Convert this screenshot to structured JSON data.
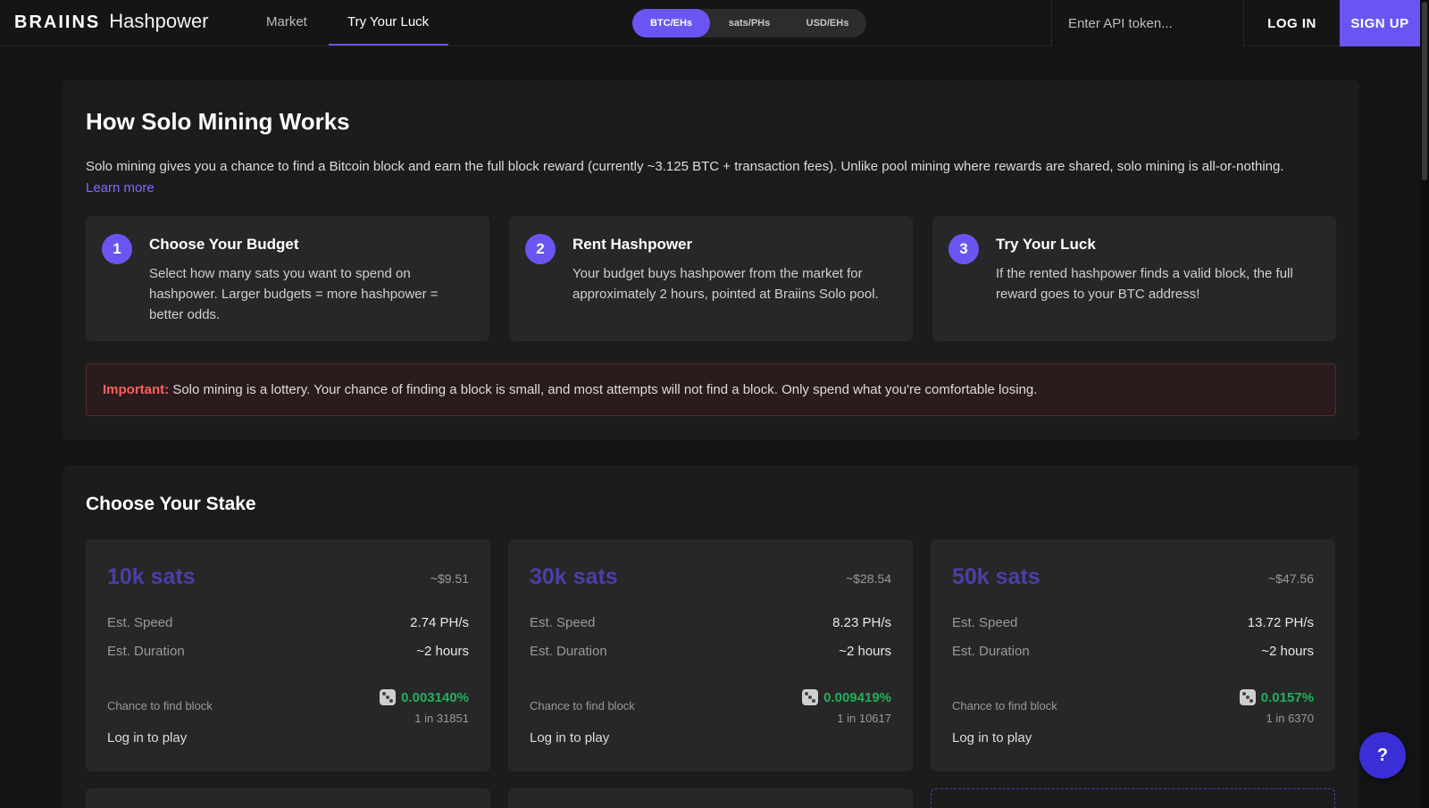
{
  "header": {
    "brand": "BRAIINS",
    "product": "Hashpower",
    "nav": [
      {
        "label": "Market",
        "active": false
      },
      {
        "label": "Try Your Luck",
        "active": true
      }
    ],
    "units": [
      {
        "label": "BTC/EHs",
        "active": true
      },
      {
        "label": "sats/PHs",
        "active": false
      },
      {
        "label": "USD/EHs",
        "active": false
      }
    ],
    "api_placeholder": "Enter API token...",
    "login_label": "LOG IN",
    "signup_label": "SIGN UP"
  },
  "how": {
    "title": "How Solo Mining Works",
    "intro": "Solo mining gives you a chance to find a Bitcoin block and earn the full block reward (currently ~3.125 BTC + transaction fees). Unlike pool mining where rewards are shared, solo mining is all-or-nothing.",
    "learn_more": "Learn more",
    "steps": [
      {
        "num": "1",
        "title": "Choose Your Budget",
        "text": "Select how many sats you want to spend on hashpower. Larger budgets = more hashpower = better odds."
      },
      {
        "num": "2",
        "title": "Rent Hashpower",
        "text": "Your budget buys hashpower from the market for approximately 2 hours, pointed at Braiins Solo pool."
      },
      {
        "num": "3",
        "title": "Try Your Luck",
        "text": "If the rented hashpower finds a valid block, the full reward goes to your BTC address!"
      }
    ],
    "warning_label": "Important:",
    "warning_text": " Solo mining is a lottery. Your chance of finding a block is small, and most attempts will not find a block. Only spend what you're comfortable losing."
  },
  "stake": {
    "title": "Choose Your Stake",
    "speed_label": "Est. Speed",
    "duration_label": "Est. Duration",
    "chance_label": "Chance to find block",
    "play_label": "Log in to play",
    "cards": [
      {
        "amount": "10k sats",
        "usd": "~$9.51",
        "speed": "2.74 PH/s",
        "duration": "~2 hours",
        "chance": "0.003140%",
        "odds": "1 in 31851"
      },
      {
        "amount": "30k sats",
        "usd": "~$28.54",
        "speed": "8.23 PH/s",
        "duration": "~2 hours",
        "chance": "0.009419%",
        "odds": "1 in 10617"
      },
      {
        "amount": "50k sats",
        "usd": "~$47.56",
        "speed": "13.72 PH/s",
        "duration": "~2 hours",
        "chance": "0.0157%",
        "odds": "1 in 6370"
      }
    ]
  },
  "help_label": "?",
  "colors": {
    "accent": "#6b55f2",
    "success": "#22b05a",
    "warning": "#ff5f5f"
  }
}
